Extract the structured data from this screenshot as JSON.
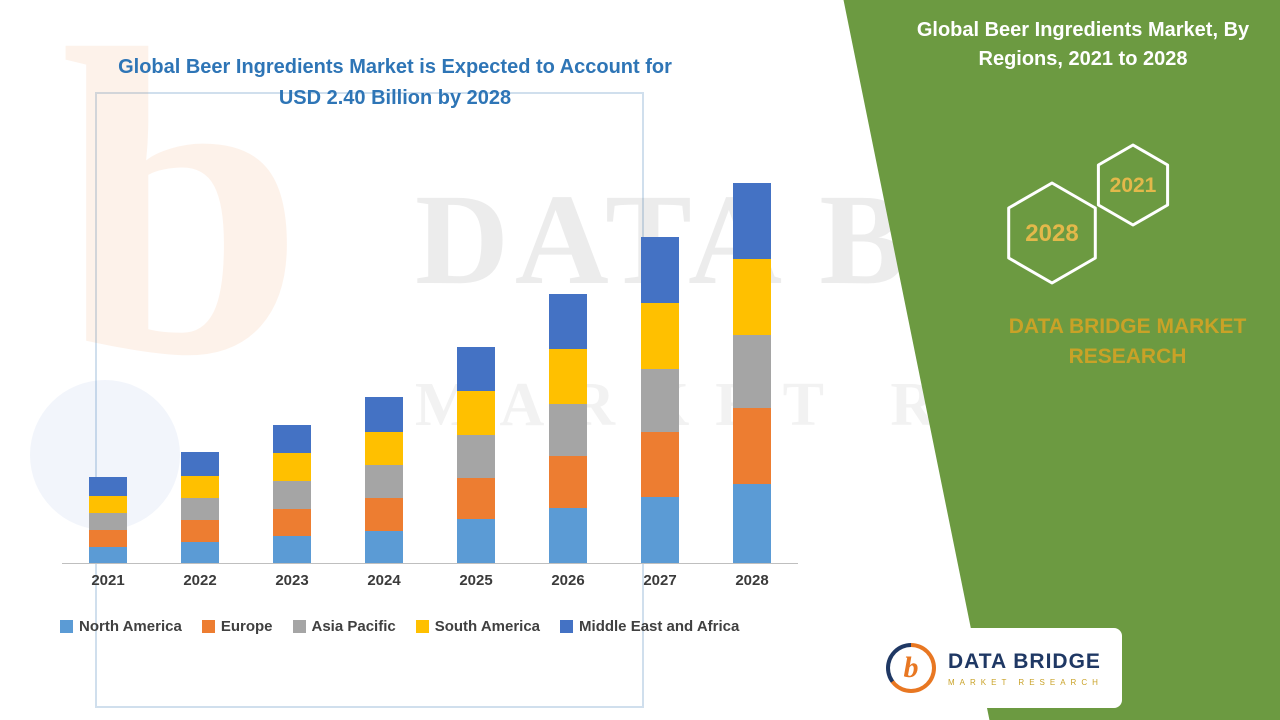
{
  "title": {
    "line1": "Global Beer Ingredients Market is Expected to Account for",
    "line2": "USD 2.40 Billion by 2028"
  },
  "panel": {
    "heading": "Global Beer Ingredients Market, By Regions, 2021 to 2028",
    "hexagons": [
      {
        "label": "2028"
      },
      {
        "label": "2021"
      }
    ],
    "brand": "DATA BRIDGE MARKET RESEARCH",
    "background_color": "#6C9A41",
    "heading_color": "#FFFFFF",
    "brand_color": "#C9A227"
  },
  "watermark": {
    "line1": "DATA BRIDGE",
    "line2": "MARKET RESEARCH"
  },
  "logo": {
    "monogram": "b",
    "name": "DATA BRIDGE",
    "sub": "MARKET RESEARCH"
  },
  "colors": {
    "title_blue": "#2E75B6",
    "axis_gray": "#BFBFBF"
  },
  "chart_data": {
    "type": "bar",
    "stacked": true,
    "title": "Global Beer Ingredients Market is Expected to Account for USD 2.40 Billion by 2028",
    "unit": "USD Billion",
    "categories": [
      "2021",
      "2022",
      "2023",
      "2024",
      "2025",
      "2026",
      "2027",
      "2028"
    ],
    "series": [
      {
        "name": "North America",
        "color": "#5B9BD5",
        "values": [
          0.1,
          0.13,
          0.17,
          0.2,
          0.28,
          0.35,
          0.42,
          0.5
        ]
      },
      {
        "name": "Europe",
        "color": "#ED7D31",
        "values": [
          0.11,
          0.14,
          0.17,
          0.21,
          0.26,
          0.33,
          0.41,
          0.48
        ]
      },
      {
        "name": "Asia Pacific",
        "color": "#A5A5A5",
        "values": [
          0.11,
          0.14,
          0.18,
          0.21,
          0.27,
          0.33,
          0.4,
          0.46
        ]
      },
      {
        "name": "South America",
        "color": "#FFC000",
        "values": [
          0.11,
          0.14,
          0.18,
          0.21,
          0.28,
          0.35,
          0.42,
          0.48
        ]
      },
      {
        "name": "Middle East and Africa",
        "color": "#4472C4",
        "values": [
          0.12,
          0.15,
          0.18,
          0.22,
          0.28,
          0.35,
          0.42,
          0.48
        ]
      }
    ],
    "totals": [
      0.55,
      0.7,
      0.88,
      1.05,
      1.37,
      1.71,
      2.07,
      2.4
    ],
    "ylim": [
      0,
      2.4
    ],
    "grid": false,
    "legend_position": "bottom",
    "xlabel": "",
    "ylabel": ""
  }
}
